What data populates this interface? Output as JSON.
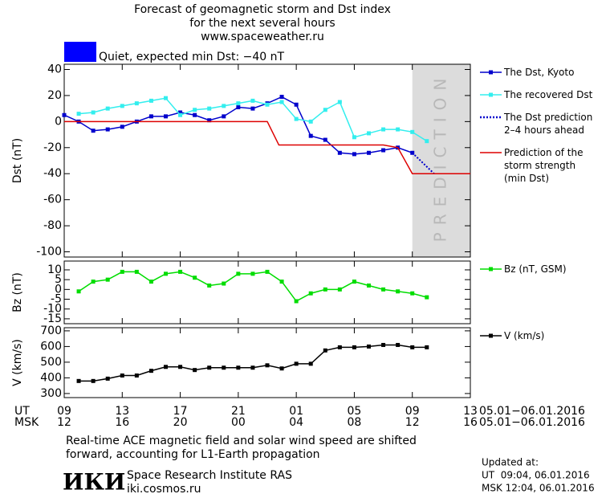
{
  "header": {
    "title": [
      "Forecast of geomagnetic storm and Dst index",
      "for the next several hours",
      "www.spaceweather.ru"
    ],
    "status": "Quiet, expected min Dst: −40 nT",
    "status_color": "#0000ff"
  },
  "chart_data": [
    {
      "type": "line",
      "ylabel": "Dst (nT)",
      "xlim": [
        0,
        28
      ],
      "xticks": [
        0,
        4,
        8,
        12,
        16,
        20,
        24,
        28
      ],
      "ylim": [
        -104,
        44
      ],
      "yticks": [
        40,
        20,
        0,
        -20,
        -40,
        -60,
        -80,
        -100
      ],
      "shade": {
        "from": 24,
        "to": 28,
        "label": "PREDICTION",
        "color": "#dcdcdc"
      },
      "series": [
        {
          "name": "The Dst, Kyoto",
          "color": "#0000cc",
          "marker": "square",
          "dash": false,
          "x": [
            0,
            1,
            2,
            3,
            4,
            5,
            6,
            7,
            8,
            9,
            10,
            11,
            12,
            13,
            14,
            15,
            16,
            17,
            18,
            19,
            20,
            21,
            22,
            23,
            24
          ],
          "values": [
            5,
            0,
            -7,
            -6,
            -4,
            0,
            4,
            4,
            7,
            5,
            1,
            4,
            11,
            10,
            14,
            19,
            13,
            -11,
            -14,
            -24,
            -25,
            -24,
            -22,
            -20,
            -24
          ]
        },
        {
          "name": "The recovered Dst",
          "color": "#33eeee",
          "marker": "square",
          "dash": false,
          "x": [
            1,
            2,
            3,
            4,
            5,
            6,
            7,
            8,
            9,
            10,
            11,
            12,
            13,
            14,
            15,
            16,
            17,
            18,
            19,
            20,
            21,
            22,
            23,
            24,
            25
          ],
          "values": [
            6,
            7,
            10,
            12,
            14,
            16,
            18,
            5,
            9,
            10,
            12,
            14,
            16,
            13,
            15,
            2,
            0,
            9,
            15,
            -12,
            -9,
            -6,
            -6,
            -8,
            -15
          ]
        },
        {
          "name": "The Dst prediction\n2–4 hours ahead",
          "color": "#0000cc",
          "marker": "none",
          "dash": true,
          "x": [
            24,
            25.5
          ],
          "values": [
            -24,
            -40
          ]
        },
        {
          "name": "Prediction of the\nstorm strength\n(min Dst)",
          "color": "#dd0000",
          "marker": "none",
          "dash": false,
          "x": [
            0,
            14,
            14.8,
            22,
            23,
            24,
            28
          ],
          "values": [
            0,
            0,
            -18,
            -18,
            -20,
            -40,
            -40
          ]
        }
      ]
    },
    {
      "type": "line",
      "ylabel": "Bz (nT)",
      "xlim": [
        0,
        28
      ],
      "xticks": [
        0,
        4,
        8,
        12,
        16,
        20,
        24,
        28
      ],
      "ylim": [
        -17.5,
        14.5
      ],
      "yticks": [
        10,
        5,
        0,
        -5,
        -10,
        -15
      ],
      "series": [
        {
          "name": "Bz (nT, GSM)",
          "color": "#00dd00",
          "marker": "square",
          "dash": false,
          "x": [
            1,
            2,
            3,
            4,
            5,
            6,
            7,
            8,
            9,
            10,
            11,
            12,
            13,
            14,
            15,
            16,
            17,
            18,
            19,
            20,
            21,
            22,
            23,
            24,
            25
          ],
          "values": [
            -1,
            4,
            5,
            9,
            9,
            4,
            8,
            9,
            6,
            2,
            3,
            8,
            8,
            9,
            4,
            -6,
            -2,
            0,
            0,
            4,
            2,
            0,
            -1,
            -2,
            -4
          ]
        }
      ]
    },
    {
      "type": "line",
      "ylabel": "V (km/s)",
      "xlim": [
        0,
        28
      ],
      "xticks": [
        0,
        4,
        8,
        12,
        16,
        20,
        24,
        28
      ],
      "ylim": [
        274,
        720
      ],
      "yticks": [
        700,
        600,
        500,
        400,
        300
      ],
      "series": [
        {
          "name": "V (km/s)",
          "color": "#000000",
          "marker": "square",
          "dash": false,
          "x": [
            1,
            2,
            3,
            4,
            5,
            6,
            7,
            8,
            9,
            10,
            11,
            12,
            13,
            14,
            15,
            16,
            17,
            18,
            19,
            20,
            21,
            22,
            23,
            24,
            25
          ],
          "values": [
            380,
            380,
            395,
            415,
            415,
            445,
            470,
            470,
            450,
            465,
            465,
            465,
            465,
            480,
            460,
            490,
            490,
            575,
            595,
            595,
            600,
            610,
            610,
            595,
            595
          ]
        }
      ]
    }
  ],
  "time_axis": [
    {
      "name": "UT",
      "labels": [
        "09",
        "13",
        "17",
        "21",
        "01",
        "05",
        "09",
        "13"
      ],
      "period": "05.01−06.01.2016"
    },
    {
      "name": "MSK",
      "labels": [
        "12",
        "16",
        "20",
        "00",
        "04",
        "08",
        "12",
        "16"
      ],
      "period": "05.01−06.01.2016"
    }
  ],
  "footer": {
    "note": [
      "Real-time ACE magnetic field and solar wind speed are shifted",
      "forward, accounting for L1-Earth propagation"
    ],
    "logo": "ИКИ",
    "institute": "Space Research Institute RAS",
    "site": "iki.cosmos.ru",
    "updated": [
      "Updated at:",
      "UT  09:04, 06.01.2016",
      "MSK 12:04, 06.01.2016"
    ]
  }
}
